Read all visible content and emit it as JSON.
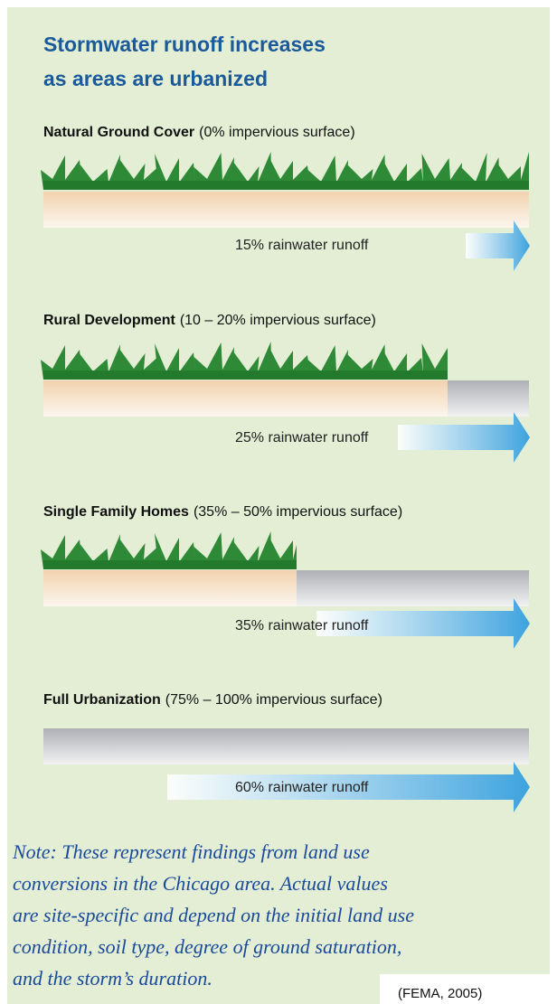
{
  "title": {
    "lines": [
      "Stormwater runoff increases",
      "as areas are urbanized"
    ]
  },
  "sections": [
    {
      "heading": "Natural Ground Cover",
      "detail": "(0% impervious surface)",
      "runoff": "15% rainwater runoff"
    },
    {
      "heading": "Rural Development",
      "detail": "(10 – 20% impervious surface)",
      "runoff": "25% rainwater runoff"
    },
    {
      "heading": "Single Family Homes",
      "detail": "(35% – 50% impervious surface)",
      "runoff": "35% rainwater runoff"
    },
    {
      "heading": "Full Urbanization",
      "detail": "(75% – 100% impervious surface)",
      "runoff": "60% rainwater runoff"
    }
  ],
  "note": {
    "lines": [
      "Note: These represent findings from land use",
      "conversions in the Chicago area.  Actual values",
      "are site-specific and depend on the initial land use",
      "condition, soil type, degree of ground saturation,",
      "and the storm’s duration."
    ]
  },
  "citation": "(FEMA, 2005)"
}
